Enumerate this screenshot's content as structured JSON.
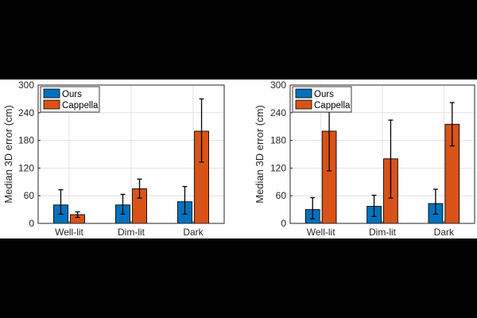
{
  "colors": {
    "ours": "#0072BD",
    "cappella": "#D95319",
    "grid": "#dcdcdc",
    "axis": "#262626",
    "errorbar": "#000000"
  },
  "chart_data": [
    {
      "type": "bar",
      "categories": [
        "Well-lit",
        "Dim-lit",
        "Dark"
      ],
      "ylabel": "Median 3D error (cm)",
      "ylim": [
        0,
        300
      ],
      "yticks": [
        0,
        60,
        120,
        180,
        240,
        300
      ],
      "grid": true,
      "legend": "top-left",
      "series": [
        {
          "name": "Ours",
          "color_key": "ours",
          "values": [
            40,
            40,
            47
          ],
          "err_low": [
            20,
            20,
            20
          ],
          "err_high": [
            73,
            63,
            80
          ]
        },
        {
          "name": "Cappella",
          "color_key": "cappella",
          "values": [
            19,
            75,
            200
          ],
          "err_low": [
            13,
            55,
            133
          ],
          "err_high": [
            25,
            96,
            270
          ]
        }
      ]
    },
    {
      "type": "bar",
      "categories": [
        "Well-lit",
        "Dim-lit",
        "Dark"
      ],
      "ylabel": "Median 3D error (cm)",
      "ylim": [
        0,
        300
      ],
      "yticks": [
        0,
        60,
        120,
        180,
        240,
        300
      ],
      "grid": true,
      "legend": "top-left",
      "series": [
        {
          "name": "Ours",
          "color_key": "ours",
          "values": [
            30,
            37,
            43
          ],
          "err_low": [
            10,
            15,
            20
          ],
          "err_high": [
            56,
            61,
            74
          ]
        },
        {
          "name": "Cappella",
          "color_key": "cappella",
          "values": [
            200,
            140,
            215
          ],
          "err_low": [
            114,
            55,
            168
          ],
          "err_high": [
            292,
            224,
            262
          ]
        }
      ]
    }
  ]
}
